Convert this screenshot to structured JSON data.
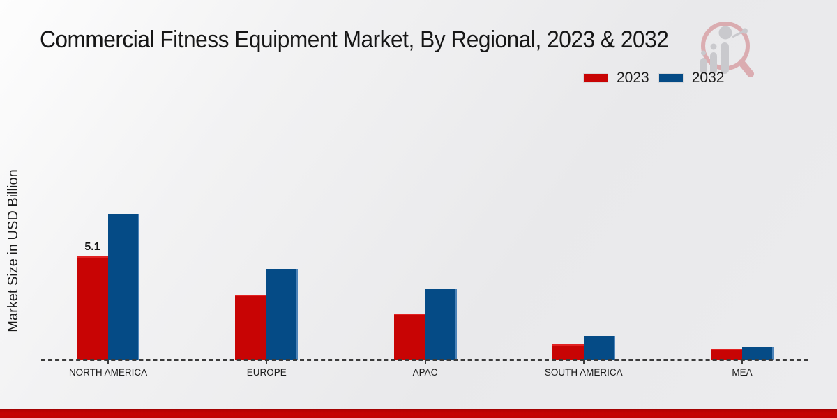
{
  "page": {
    "title": "Commercial Fitness Equipment Market, By Regional, 2023 & 2032"
  },
  "y_axis": {
    "label": "Market Size in USD Billion"
  },
  "legend": {
    "items": [
      {
        "label": "2023",
        "color": "#c80404"
      },
      {
        "label": "2032",
        "color": "#054b86"
      }
    ]
  },
  "colors": {
    "series_2023": "#c80404",
    "series_2032": "#054b86",
    "footer_strip": "#c60404",
    "baseline_dash": "#3b3b3b",
    "background": "#e9e9eb"
  },
  "watermark": {
    "name": "magnifier-analytics-logo"
  },
  "chart_data": {
    "type": "bar",
    "title": "Commercial Fitness Equipment Market, By Regional, 2023 & 2032",
    "ylabel": "Market Size in USD Billion",
    "xlabel": "",
    "categories": [
      "NORTH AMERICA",
      "EUROPE",
      "APAC",
      "SOUTH AMERICA",
      "MEA"
    ],
    "series": [
      {
        "name": "2023",
        "color": "#c80404",
        "values": [
          5.1,
          3.2,
          2.3,
          0.8,
          0.55
        ]
      },
      {
        "name": "2032",
        "color": "#054b86",
        "values": [
          7.2,
          4.5,
          3.5,
          1.2,
          0.65
        ]
      }
    ],
    "annotations": [
      {
        "series": "2023",
        "category": "NORTH AMERICA",
        "value": 5.1,
        "text": "5.1"
      }
    ],
    "ylim": [
      0,
      8
    ],
    "grid": false,
    "y_tick_labels": "none",
    "baseline_style": "dashed",
    "legend_position": "top-right"
  }
}
